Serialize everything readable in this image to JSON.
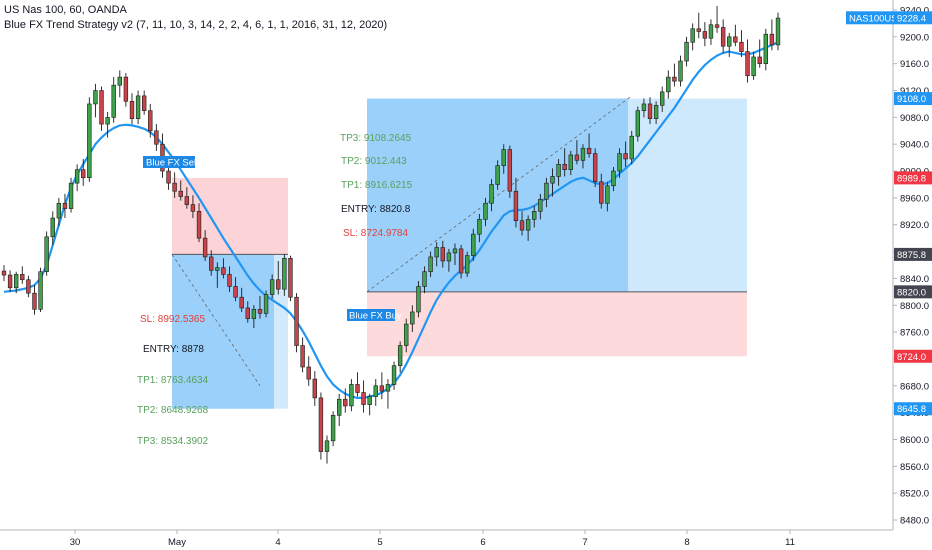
{
  "header": {
    "title": "US Nas 100, 60, OANDA",
    "indicator": "Blue FX Trend Strategy v2 (7, 11, 10, 3, 14, 2, 2, 4, 6, 1, 1, 2016, 31, 12, 2020)"
  },
  "colors": {
    "bull": "#26a69a",
    "bear": "#ef5350",
    "green_candle": "#3fa14b",
    "red_candle": "#c8444b",
    "blue_candle": "#2c6ea8",
    "ma": "#2196f3",
    "profit": "#2196f3",
    "loss": "#f23645",
    "tp_text": "#5aa15e",
    "sl_text": "#e0403b",
    "entry_text": "#131722"
  },
  "chart_data": {
    "type": "candlestick",
    "symbol": "NAS100USD",
    "y_ticks": [
      "9240.0",
      "9200.0",
      "9160.0",
      "9120.0",
      "9080.0",
      "9040.0",
      "9000.0",
      "8960.0",
      "8920.0",
      "8880.0",
      "8840.0",
      "8800.0",
      "8760.0",
      "8720.0",
      "8680.0",
      "8640.0",
      "8600.0",
      "8560.0",
      "8520.0",
      "8480.0"
    ],
    "x_ticks": [
      "30",
      "May",
      "4",
      "5",
      "6",
      "7",
      "8",
      "11"
    ],
    "ylim": [
      8470,
      9250
    ],
    "price_tags": [
      {
        "label": "NAS100USD",
        "value": "9228.4",
        "price": 9228.4,
        "color": "#2196f3"
      },
      {
        "label": "",
        "value": "9108.0",
        "price": 9108.0,
        "color": "#2196f3"
      },
      {
        "label": "",
        "value": "8989.8",
        "price": 8989.8,
        "color": "#f23645"
      },
      {
        "label": "",
        "value": "8875.8",
        "price": 8875.8,
        "color": "#434651"
      },
      {
        "label": "",
        "value": "8820.0",
        "price": 8820.0,
        "color": "#434651"
      },
      {
        "label": "",
        "value": "8724.0",
        "price": 8724.0,
        "color": "#f23645"
      },
      {
        "label": "",
        "value": "8645.8",
        "price": 8645.8,
        "color": "#2196f3"
      }
    ],
    "sell_trade": {
      "signal": "Blue FX Sell",
      "sl": "SL: 8992.5365",
      "entry": "ENTRY: 8878",
      "tp1": "TP1: 8763.4634",
      "tp2": "TP2: 8648.9268",
      "tp3": "TP3: 8534.3902",
      "entry_price": 8875.8,
      "stop_price": 8989.8,
      "target_price": 8645.8
    },
    "buy_trade": {
      "signal": "Blue FX Buy",
      "tp3": "TP3: 9108.2645",
      "tp2": "TP2: 9012.443",
      "tp1": "TP1: 8916.6215",
      "entry": "ENTRY: 8820.8",
      "sl": "SL: 8724.9784",
      "entry_price": 8820.0,
      "stop_price": 8724.0,
      "target_price": 9108.0
    },
    "candles": [
      [
        8851,
        8860,
        8836,
        8845
      ],
      [
        8845,
        8852,
        8820,
        8826
      ],
      [
        8826,
        8850,
        8818,
        8846
      ],
      [
        8846,
        8858,
        8832,
        8838
      ],
      [
        8838,
        8844,
        8812,
        8818
      ],
      [
        8818,
        8830,
        8786,
        8794
      ],
      [
        8794,
        8856,
        8790,
        8850
      ],
      [
        8850,
        8910,
        8844,
        8902
      ],
      [
        8902,
        8940,
        8890,
        8930
      ],
      [
        8930,
        8960,
        8918,
        8952
      ],
      [
        8952,
        8966,
        8930,
        8944
      ],
      [
        8944,
        8990,
        8938,
        8982
      ],
      [
        8982,
        9010,
        8970,
        9002
      ],
      [
        9002,
        9018,
        8978,
        8990
      ],
      [
        8990,
        9110,
        8984,
        9100
      ],
      [
        9100,
        9130,
        9080,
        9120
      ],
      [
        9120,
        9126,
        9060,
        9070
      ],
      [
        9070,
        9088,
        9050,
        9080
      ],
      [
        9080,
        9140,
        9072,
        9128
      ],
      [
        9128,
        9150,
        9110,
        9140
      ],
      [
        9140,
        9146,
        9096,
        9104
      ],
      [
        9104,
        9116,
        9070,
        9078
      ],
      [
        9078,
        9120,
        9070,
        9112
      ],
      [
        9112,
        9120,
        9084,
        9090
      ],
      [
        9090,
        9100,
        9050,
        9060
      ],
      [
        9060,
        9070,
        9030,
        9040
      ],
      [
        9040,
        9056,
        8990,
        9000
      ],
      [
        9000,
        9010,
        8972,
        8982
      ],
      [
        8982,
        8998,
        8960,
        8970
      ],
      [
        8970,
        8986,
        8956,
        8962
      ],
      [
        8962,
        8976,
        8944,
        8950
      ],
      [
        8950,
        8964,
        8930,
        8940
      ],
      [
        8940,
        8952,
        8894,
        8900
      ],
      [
        8900,
        8912,
        8866,
        8872
      ],
      [
        8872,
        8882,
        8844,
        8852
      ],
      [
        8852,
        8864,
        8826,
        8856
      ],
      [
        8856,
        8870,
        8840,
        8846
      ],
      [
        8846,
        8858,
        8820,
        8828
      ],
      [
        8828,
        8842,
        8806,
        8812
      ],
      [
        8812,
        8826,
        8790,
        8796
      ],
      [
        8796,
        8806,
        8774,
        8780
      ],
      [
        8780,
        8800,
        8766,
        8794
      ],
      [
        8794,
        8814,
        8780,
        8788
      ],
      [
        8788,
        8822,
        8782,
        8816
      ],
      [
        8816,
        8846,
        8810,
        8838
      ],
      [
        8838,
        8866,
        8816,
        8824
      ],
      [
        8824,
        8876,
        8814,
        8870
      ],
      [
        8870,
        8874,
        8806,
        8812
      ],
      [
        8812,
        8818,
        8730,
        8740
      ],
      [
        8740,
        8752,
        8700,
        8708
      ],
      [
        8708,
        8724,
        8680,
        8690
      ],
      [
        8690,
        8702,
        8650,
        8662
      ],
      [
        8662,
        8670,
        8570,
        8582
      ],
      [
        8582,
        8606,
        8564,
        8598
      ],
      [
        8598,
        8642,
        8590,
        8636
      ],
      [
        8636,
        8668,
        8620,
        8660
      ],
      [
        8660,
        8676,
        8640,
        8650
      ],
      [
        8650,
        8690,
        8642,
        8682
      ],
      [
        8682,
        8700,
        8664,
        8670
      ],
      [
        8670,
        8688,
        8640,
        8652
      ],
      [
        8652,
        8668,
        8636,
        8664
      ],
      [
        8664,
        8690,
        8650,
        8680
      ],
      [
        8680,
        8700,
        8660,
        8672
      ],
      [
        8672,
        8690,
        8646,
        8682
      ],
      [
        8682,
        8716,
        8674,
        8710
      ],
      [
        8710,
        8746,
        8700,
        8740
      ],
      [
        8740,
        8780,
        8730,
        8772
      ],
      [
        8772,
        8800,
        8760,
        8790
      ],
      [
        8790,
        8836,
        8782,
        8828
      ],
      [
        8828,
        8858,
        8818,
        8850
      ],
      [
        8850,
        8880,
        8842,
        8872
      ],
      [
        8872,
        8894,
        8858,
        8886
      ],
      [
        8886,
        8896,
        8856,
        8866
      ],
      [
        8866,
        8884,
        8850,
        8878
      ],
      [
        8878,
        8892,
        8860,
        8884
      ],
      [
        8884,
        8890,
        8840,
        8848
      ],
      [
        8848,
        8880,
        8842,
        8874
      ],
      [
        8874,
        8914,
        8866,
        8906
      ],
      [
        8906,
        8936,
        8894,
        8928
      ],
      [
        8928,
        8960,
        8918,
        8952
      ],
      [
        8952,
        8988,
        8940,
        8980
      ],
      [
        8980,
        9016,
        8972,
        9008
      ],
      [
        9008,
        9040,
        8996,
        9032
      ],
      [
        9032,
        9038,
        8960,
        8970
      ],
      [
        8970,
        8990,
        8916,
        8926
      ],
      [
        8926,
        8940,
        8904,
        8912
      ],
      [
        8912,
        8934,
        8896,
        8928
      ],
      [
        8928,
        8948,
        8916,
        8940
      ],
      [
        8940,
        8966,
        8928,
        8958
      ],
      [
        8958,
        8990,
        8946,
        8982
      ],
      [
        8982,
        9004,
        8962,
        8992
      ],
      [
        8992,
        9018,
        8978,
        9010
      ],
      [
        9010,
        9034,
        8992,
        9002
      ],
      [
        9002,
        9030,
        8994,
        9024
      ],
      [
        9024,
        9046,
        9010,
        9016
      ],
      [
        9016,
        9040,
        9004,
        9034
      ],
      [
        9034,
        9056,
        9020,
        9026
      ],
      [
        9026,
        9034,
        8976,
        8984
      ],
      [
        8984,
        8996,
        8944,
        8952
      ],
      [
        8952,
        8984,
        8940,
        8978
      ],
      [
        8978,
        9006,
        8970,
        9000
      ],
      [
        9000,
        9034,
        8990,
        9026
      ],
      [
        9026,
        9044,
        9006,
        9018
      ],
      [
        9018,
        9060,
        9010,
        9052
      ],
      [
        9052,
        9096,
        9044,
        9090
      ],
      [
        9090,
        9108,
        9080,
        9100
      ],
      [
        9100,
        9110,
        9070,
        9078
      ],
      [
        9078,
        9104,
        9070,
        9098
      ],
      [
        9098,
        9126,
        9088,
        9118
      ],
      [
        9118,
        9150,
        9108,
        9140
      ],
      [
        9140,
        9160,
        9126,
        9134
      ],
      [
        9134,
        9172,
        9126,
        9164
      ],
      [
        9164,
        9200,
        9156,
        9192
      ],
      [
        9192,
        9220,
        9180,
        9212
      ],
      [
        9212,
        9236,
        9198,
        9208
      ],
      [
        9208,
        9222,
        9186,
        9198
      ],
      [
        9198,
        9226,
        9188,
        9218
      ],
      [
        9218,
        9246,
        9206,
        9214
      ],
      [
        9214,
        9226,
        9176,
        9186
      ],
      [
        9186,
        9206,
        9170,
        9200
      ],
      [
        9200,
        9218,
        9186,
        9192
      ],
      [
        9192,
        9210,
        9170,
        9178
      ],
      [
        9178,
        9196,
        9132,
        9142
      ],
      [
        9142,
        9178,
        9136,
        9170
      ],
      [
        9170,
        9196,
        9154,
        9160
      ],
      [
        9160,
        9212,
        9150,
        9204
      ],
      [
        9204,
        9226,
        9180,
        9188
      ],
      [
        9188,
        9236,
        9180,
        9228
      ]
    ],
    "ma": [
      8820,
      8821,
      8822,
      8824,
      8826,
      8830,
      8840,
      8860,
      8890,
      8920,
      8950,
      8975,
      8995,
      9010,
      9025,
      9040,
      9050,
      9058,
      9064,
      9068,
      9069,
      9068,
      9066,
      9063,
      9058,
      9050,
      9040,
      9028,
      9016,
      9002,
      8988,
      8974,
      8960,
      8945,
      8930,
      8915,
      8900,
      8886,
      8872,
      8858,
      8844,
      8832,
      8822,
      8814,
      8808,
      8802,
      8796,
      8788,
      8776,
      8762,
      8746,
      8728,
      8710,
      8694,
      8682,
      8674,
      8668,
      8664,
      8662,
      8662,
      8664,
      8666,
      8670,
      8676,
      8684,
      8696,
      8712,
      8730,
      8750,
      8770,
      8790,
      8808,
      8822,
      8834,
      8844,
      8852,
      8860,
      8870,
      8882,
      8896,
      8910,
      8922,
      8934,
      8940,
      8942,
      8942,
      8944,
      8948,
      8954,
      8960,
      8966,
      8972,
      8978,
      8984,
      8988,
      8990,
      8986,
      8982,
      8980,
      8982,
      8988,
      8996,
      9004,
      9012,
      9022,
      9034,
      9046,
      9058,
      9070,
      9082,
      9094,
      9108,
      9122,
      9136,
      9148,
      9158,
      9166,
      9172,
      9176,
      9178,
      9176,
      9174,
      9174,
      9176,
      9180,
      9184,
      9188,
      9192
    ]
  }
}
